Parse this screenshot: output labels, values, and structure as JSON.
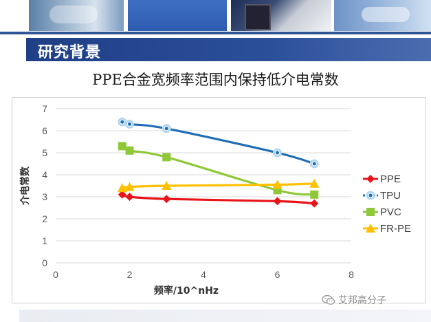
{
  "slide": {
    "section_title": "研究背景",
    "subtitle": "PPE合金宽频率范围内保持低介电常数",
    "watermark": "艾邦高分子",
    "watermark_icon": "wechat-icon"
  },
  "chart_data": {
    "type": "line",
    "title": "",
    "xlabel": "频率/10^nHz",
    "ylabel": "介电常数",
    "xlim": [
      0,
      8
    ],
    "ylim": [
      0,
      7
    ],
    "x_ticks": [
      "0",
      "2",
      "4",
      "6",
      "8"
    ],
    "y_ticks": [
      "0",
      "1",
      "2",
      "3",
      "4",
      "5",
      "6",
      "7"
    ],
    "grid": "horizontal",
    "legend_position": "right",
    "series": [
      {
        "name": "PPE",
        "color": "#e8141a",
        "marker": "diamond",
        "x": [
          1.8,
          2,
          3,
          6,
          7
        ],
        "y": [
          3.1,
          3.0,
          2.9,
          2.8,
          2.7
        ]
      },
      {
        "name": "TPU",
        "color": "#1f6eb5",
        "marker": "circle",
        "x": [
          1.8,
          2,
          3,
          6,
          7
        ],
        "y": [
          6.4,
          6.3,
          6.1,
          5.0,
          4.5
        ]
      },
      {
        "name": "PVC",
        "color": "#8fc93a",
        "marker": "square",
        "x": [
          1.8,
          2,
          3,
          6,
          7
        ],
        "y": [
          5.3,
          5.1,
          4.8,
          3.3,
          3.1
        ]
      },
      {
        "name": "FR-PE",
        "color": "#ffc000",
        "marker": "triangle",
        "x": [
          1.8,
          2,
          3,
          6,
          7
        ],
        "y": [
          3.4,
          3.45,
          3.5,
          3.55,
          3.6
        ]
      }
    ]
  }
}
